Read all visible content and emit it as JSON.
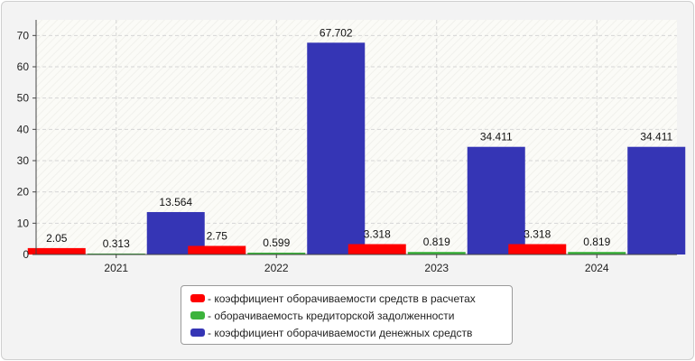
{
  "chart_data": {
    "type": "bar",
    "categories": [
      "2021",
      "2022",
      "2023",
      "2024"
    ],
    "series": [
      {
        "name": "- коэффициент оборачиваемости средств в расчетах",
        "color": "#ff0000",
        "values": [
          2.05,
          2.75,
          3.318,
          3.318
        ]
      },
      {
        "name": "- оборачиваемость кредиторской задолженности",
        "color": "#3cb33c",
        "values": [
          0.313,
          0.599,
          0.819,
          0.819
        ]
      },
      {
        "name": "- коэффициент оборачиваемости денежных средств",
        "color": "#3535b5",
        "values": [
          13.564,
          67.702,
          34.411,
          34.411
        ]
      }
    ],
    "data_labels": [
      [
        "2.05",
        "2.75",
        "3.318",
        ""
      ],
      [
        "0.313",
        "0.599",
        "0.819",
        ""
      ],
      [
        "13.564",
        "67.702",
        "34.411",
        ""
      ]
    ],
    "yticks": [
      "0",
      "10",
      "20",
      "30",
      "40",
      "50",
      "60",
      "70"
    ],
    "ylim": [
      0,
      75
    ],
    "grid": true,
    "legend_position": "bottom"
  }
}
